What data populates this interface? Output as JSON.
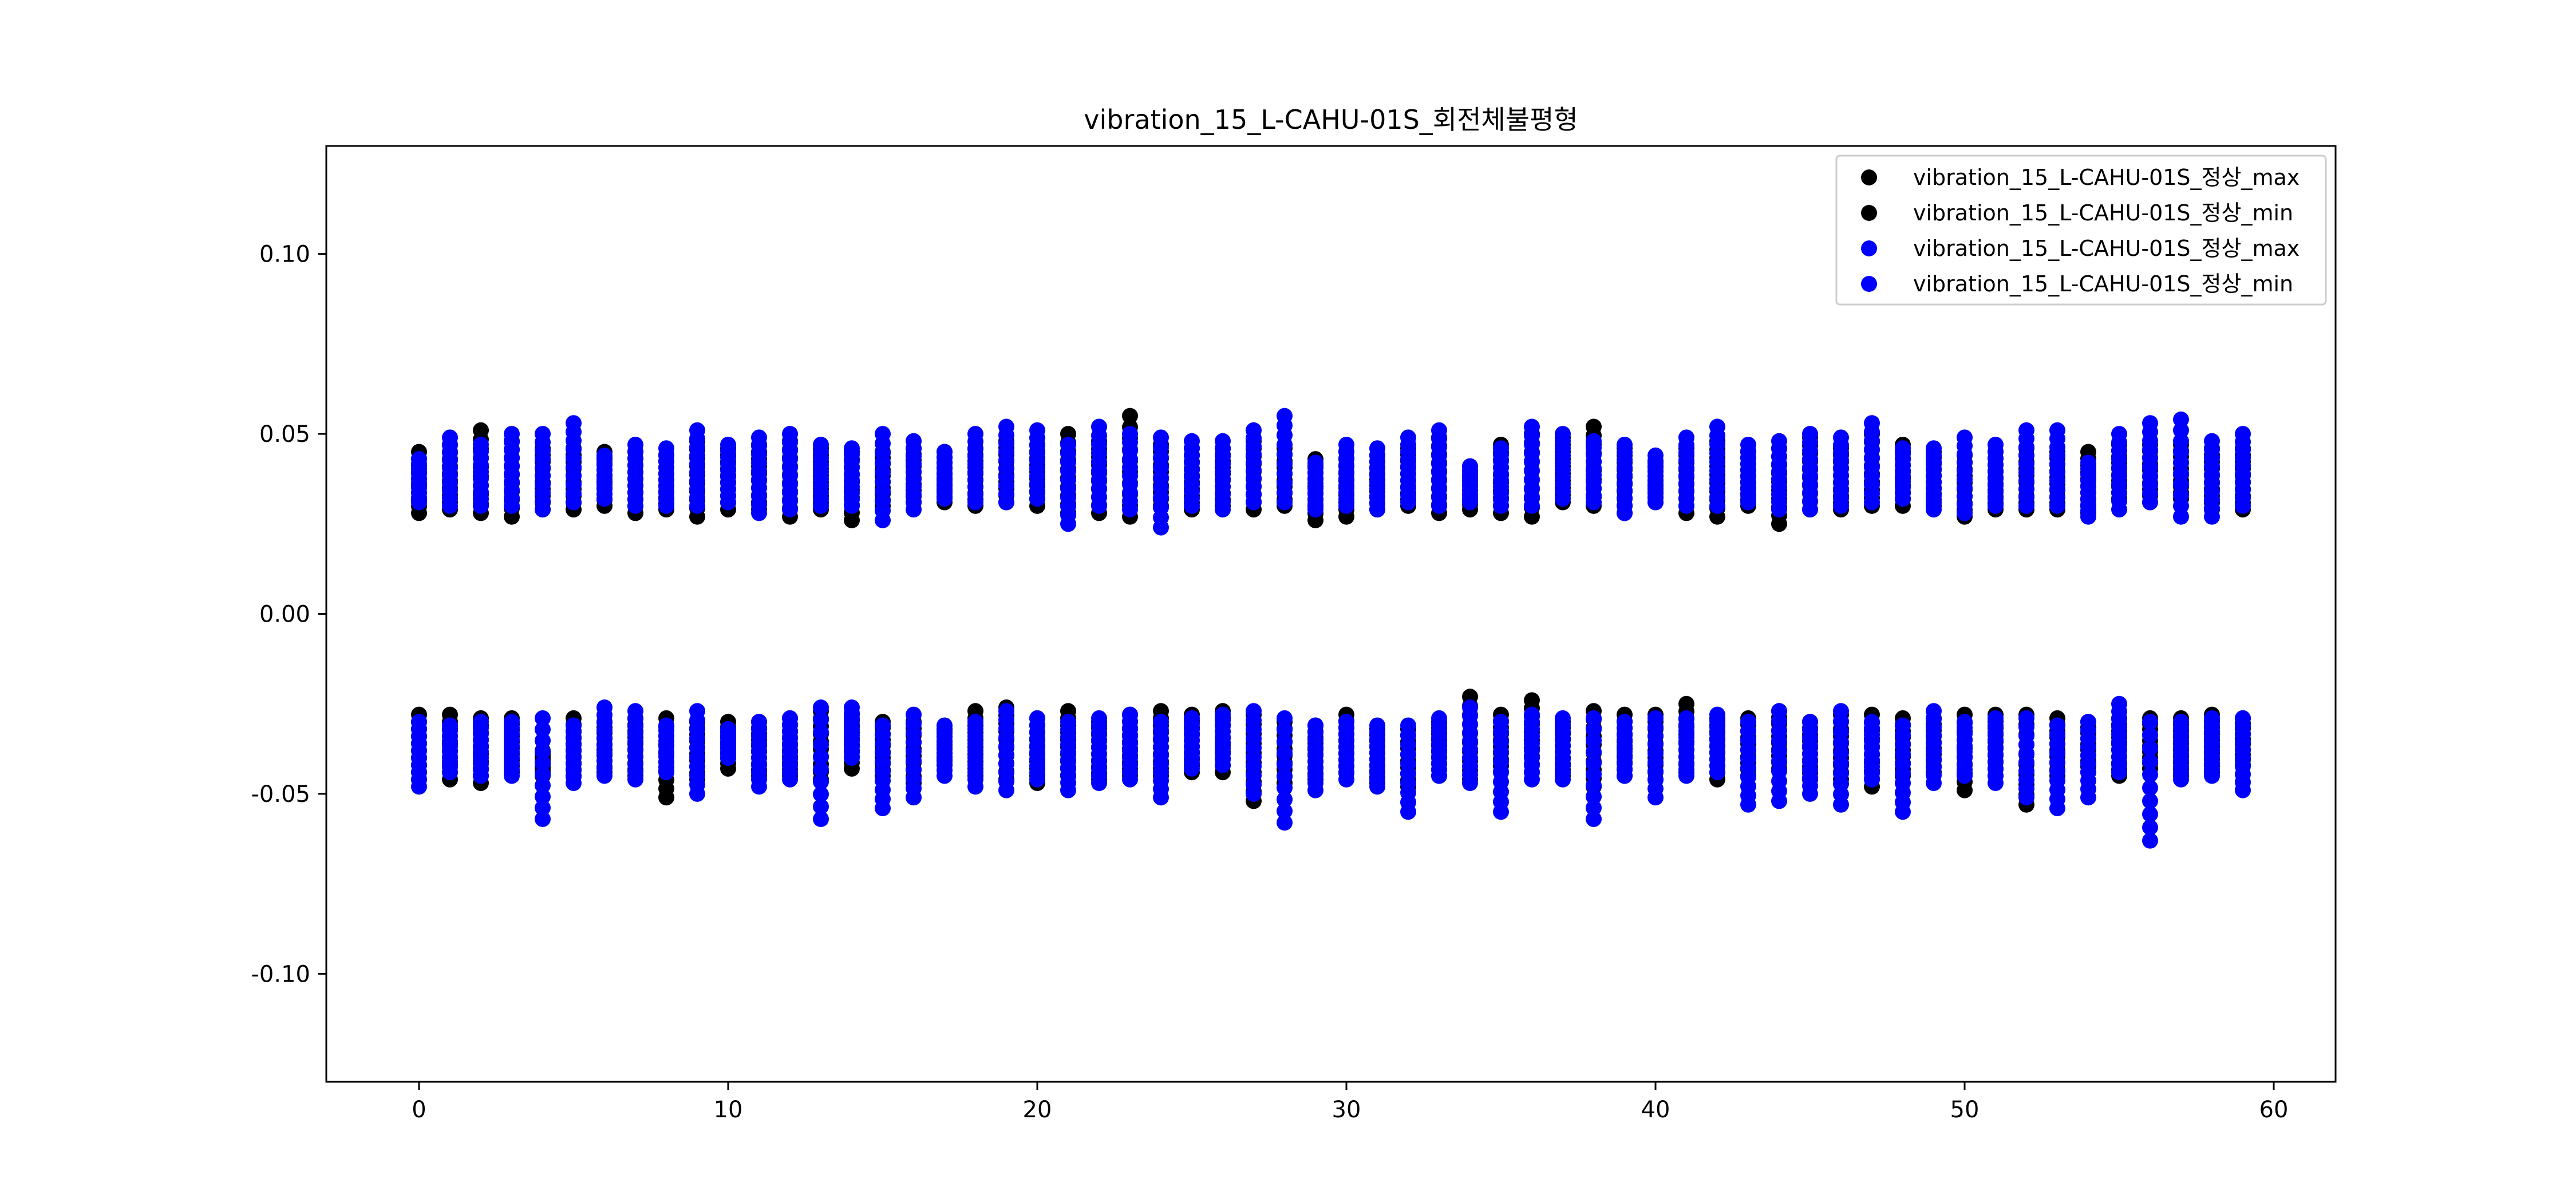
{
  "chart_data": {
    "type": "scatter",
    "title": "vibration_15_L-CAHU-01S_회전체불평형",
    "xlabel": "",
    "ylabel": "",
    "xlim": [
      -3,
      62
    ],
    "ylim": [
      -0.13,
      0.13
    ],
    "x_ticks": [
      0,
      10,
      20,
      30,
      40,
      50,
      60
    ],
    "x_tick_labels": [
      "0",
      "10",
      "20",
      "30",
      "40",
      "50",
      "60"
    ],
    "y_ticks": [
      0.1,
      0.05,
      0.0,
      -0.05,
      -0.1
    ],
    "y_tick_labels": [
      "0.10",
      "0.05",
      "0.00",
      "-0.05",
      "-0.10"
    ],
    "grid": false,
    "legend_position": "top-right",
    "x": [
      0,
      1,
      2,
      3,
      4,
      5,
      6,
      7,
      8,
      9,
      10,
      11,
      12,
      13,
      14,
      15,
      16,
      17,
      18,
      19,
      20,
      21,
      22,
      23,
      24,
      25,
      26,
      27,
      28,
      29,
      30,
      31,
      32,
      33,
      34,
      35,
      36,
      37,
      38,
      39,
      40,
      41,
      42,
      43,
      44,
      45,
      46,
      47,
      48,
      49,
      50,
      51,
      52,
      53,
      54,
      55,
      56,
      57,
      58,
      59
    ],
    "series": [
      {
        "name": "vibration_15_L-CAHU-01S_정상_max",
        "color": "#000000",
        "band_high": [
          0.045,
          0.047,
          0.051,
          0.048,
          0.046,
          0.046,
          0.045,
          0.045,
          0.044,
          0.048,
          0.046,
          0.047,
          0.048,
          0.046,
          0.045,
          0.045,
          0.046,
          0.045,
          0.046,
          0.048,
          0.047,
          0.05,
          0.048,
          0.055,
          0.047,
          0.046,
          0.046,
          0.048,
          0.046,
          0.043,
          0.045,
          0.044,
          0.046,
          0.049,
          0.041,
          0.047,
          0.05,
          0.049,
          0.052,
          0.046,
          0.042,
          0.046,
          0.048,
          0.045,
          0.046,
          0.049,
          0.046,
          0.05,
          0.047,
          0.045,
          0.044,
          0.045,
          0.046,
          0.045,
          0.045,
          0.047,
          0.047,
          0.047,
          0.046,
          0.046
        ],
        "band_low": [
          0.028,
          0.029,
          0.028,
          0.027,
          0.029,
          0.029,
          0.03,
          0.028,
          0.029,
          0.027,
          0.029,
          0.029,
          0.027,
          0.029,
          0.026,
          0.03,
          0.031,
          0.031,
          0.03,
          0.031,
          0.03,
          0.028,
          0.028,
          0.027,
          0.03,
          0.029,
          0.03,
          0.029,
          0.03,
          0.026,
          0.027,
          0.029,
          0.03,
          0.028,
          0.029,
          0.028,
          0.027,
          0.031,
          0.03,
          0.028,
          0.031,
          0.028,
          0.027,
          0.03,
          0.025,
          0.029,
          0.029,
          0.03,
          0.03,
          0.03,
          0.027,
          0.029,
          0.029,
          0.029,
          0.028,
          0.032,
          0.031,
          0.032,
          0.029,
          0.029
        ],
        "neg_high": [
          -0.028,
          -0.028,
          -0.029,
          -0.029,
          -0.038,
          -0.029,
          -0.03,
          -0.029,
          -0.029,
          -0.03,
          -0.03,
          -0.03,
          -0.029,
          -0.027,
          -0.028,
          -0.03,
          -0.03,
          -0.032,
          -0.027,
          -0.026,
          -0.029,
          -0.027,
          -0.03,
          -0.028,
          -0.027,
          -0.028,
          -0.027,
          -0.028,
          -0.03,
          -0.031,
          -0.028,
          -0.032,
          -0.032,
          -0.03,
          -0.023,
          -0.028,
          -0.024,
          -0.03,
          -0.027,
          -0.028,
          -0.028,
          -0.025,
          -0.029,
          -0.029,
          -0.027,
          -0.03,
          -0.028,
          -0.028,
          -0.029,
          -0.029,
          -0.028,
          -0.028,
          -0.028,
          -0.029,
          -0.03,
          -0.029,
          -0.029,
          -0.029,
          -0.028,
          -0.029
        ],
        "neg_low": [
          -0.046,
          -0.046,
          -0.047,
          -0.044,
          -0.045,
          -0.045,
          -0.044,
          -0.045,
          -0.051,
          -0.046,
          -0.043,
          -0.045,
          -0.045,
          -0.046,
          -0.043,
          -0.045,
          -0.047,
          -0.042,
          -0.045,
          -0.046,
          -0.047,
          -0.045,
          -0.046,
          -0.045,
          -0.045,
          -0.044,
          -0.044,
          -0.052,
          -0.047,
          -0.046,
          -0.044,
          -0.047,
          -0.048,
          -0.045,
          -0.046,
          -0.044,
          -0.044,
          -0.045,
          -0.048,
          -0.045,
          -0.046,
          -0.044,
          -0.046,
          -0.045,
          -0.043,
          -0.046,
          -0.046,
          -0.048,
          -0.045,
          -0.044,
          -0.049,
          -0.045,
          -0.053,
          -0.045,
          -0.044,
          -0.045,
          -0.043,
          -0.045,
          -0.044,
          -0.042
        ]
      },
      {
        "name": "vibration_15_L-CAHU-01S_정상_min",
        "color": "#000000"
      },
      {
        "name": "vibration_15_L-CAHU-01S_정상_max",
        "color": "#0000ff",
        "band_high": [
          0.043,
          0.049,
          0.047,
          0.05,
          0.05,
          0.053,
          0.044,
          0.047,
          0.046,
          0.051,
          0.047,
          0.049,
          0.05,
          0.047,
          0.046,
          0.05,
          0.048,
          0.045,
          0.05,
          0.052,
          0.051,
          0.047,
          0.052,
          0.05,
          0.049,
          0.048,
          0.048,
          0.051,
          0.055,
          0.042,
          0.047,
          0.046,
          0.049,
          0.051,
          0.041,
          0.046,
          0.052,
          0.05,
          0.048,
          0.047,
          0.044,
          0.049,
          0.052,
          0.047,
          0.048,
          0.05,
          0.049,
          0.053,
          0.046,
          0.046,
          0.049,
          0.047,
          0.051,
          0.051,
          0.042,
          0.05,
          0.053,
          0.054,
          0.048,
          0.05
        ],
        "band_low": [
          0.031,
          0.03,
          0.03,
          0.03,
          0.029,
          0.031,
          0.032,
          0.03,
          0.03,
          0.03,
          0.031,
          0.028,
          0.029,
          0.03,
          0.03,
          0.026,
          0.029,
          0.032,
          0.031,
          0.031,
          0.032,
          0.025,
          0.03,
          0.029,
          0.024,
          0.03,
          0.029,
          0.031,
          0.031,
          0.029,
          0.03,
          0.029,
          0.031,
          0.03,
          0.031,
          0.03,
          0.03,
          0.032,
          0.031,
          0.028,
          0.031,
          0.03,
          0.03,
          0.031,
          0.029,
          0.029,
          0.03,
          0.031,
          0.032,
          0.029,
          0.028,
          0.03,
          0.03,
          0.03,
          0.027,
          0.029,
          0.031,
          0.027,
          0.027,
          0.03
        ],
        "neg_high": [
          -0.03,
          -0.031,
          -0.03,
          -0.03,
          -0.029,
          -0.031,
          -0.026,
          -0.027,
          -0.031,
          -0.027,
          -0.032,
          -0.03,
          -0.029,
          -0.026,
          -0.026,
          -0.031,
          -0.028,
          -0.031,
          -0.03,
          -0.027,
          -0.029,
          -0.03,
          -0.029,
          -0.028,
          -0.03,
          -0.029,
          -0.028,
          -0.027,
          -0.029,
          -0.031,
          -0.03,
          -0.031,
          -0.031,
          -0.029,
          -0.026,
          -0.03,
          -0.028,
          -0.029,
          -0.029,
          -0.03,
          -0.029,
          -0.029,
          -0.028,
          -0.03,
          -0.027,
          -0.03,
          -0.027,
          -0.03,
          -0.031,
          -0.027,
          -0.03,
          -0.029,
          -0.029,
          -0.031,
          -0.03,
          -0.025,
          -0.03,
          -0.03,
          -0.029,
          -0.029
        ],
        "neg_low": [
          -0.048,
          -0.044,
          -0.045,
          -0.045,
          -0.057,
          -0.047,
          -0.045,
          -0.046,
          -0.044,
          -0.05,
          -0.04,
          -0.048,
          -0.046,
          -0.057,
          -0.04,
          -0.054,
          -0.051,
          -0.045,
          -0.048,
          -0.049,
          -0.046,
          -0.049,
          -0.047,
          -0.046,
          -0.051,
          -0.043,
          -0.042,
          -0.05,
          -0.058,
          -0.049,
          -0.046,
          -0.048,
          -0.055,
          -0.045,
          -0.047,
          -0.055,
          -0.046,
          -0.046,
          -0.057,
          -0.045,
          -0.051,
          -0.045,
          -0.044,
          -0.053,
          -0.052,
          -0.05,
          -0.053,
          -0.046,
          -0.055,
          -0.047,
          -0.045,
          -0.047,
          -0.051,
          -0.054,
          -0.051,
          -0.044,
          -0.063,
          -0.046,
          -0.045,
          -0.049
        ]
      },
      {
        "name": "vibration_15_L-CAHU-01S_정상_min",
        "color": "#0000ff"
      }
    ]
  }
}
